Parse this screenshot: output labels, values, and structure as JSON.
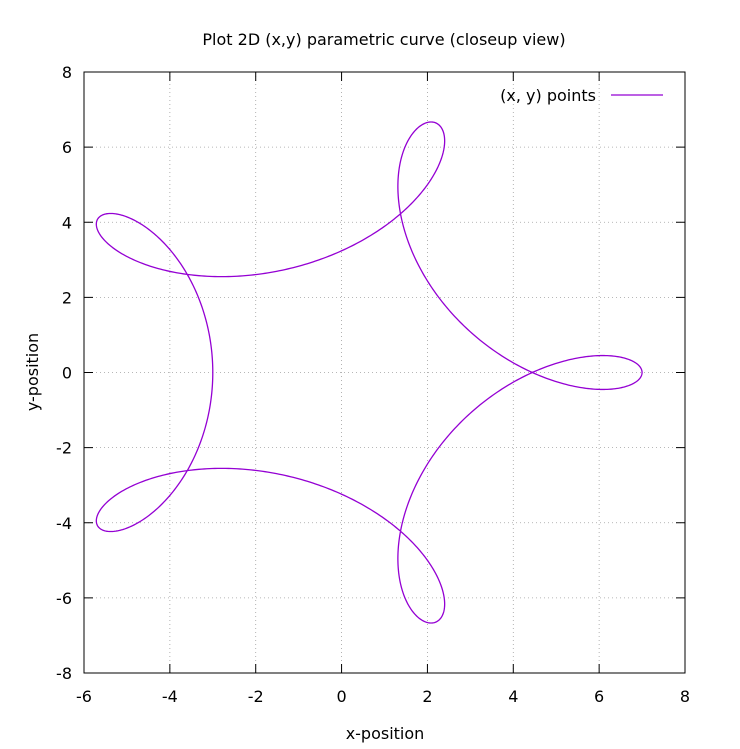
{
  "chart_data": {
    "type": "line",
    "title": "Plot 2D (x,y) parametric curve (closeup view)",
    "xlabel": "x-position",
    "ylabel": "y-position",
    "xlim": [
      -6,
      8
    ],
    "ylim": [
      -8,
      8
    ],
    "x_ticks": [
      -6,
      -4,
      -2,
      0,
      2,
      4,
      6,
      8
    ],
    "y_ticks": [
      -8,
      -6,
      -4,
      -2,
      0,
      2,
      4,
      6,
      8
    ],
    "grid": true,
    "legend_position": "top-right",
    "series": [
      {
        "name": "(x, y) points",
        "color": "#9400d3",
        "equation": {
          "x": "5*cos(t) + 2*cos(4*t)",
          "y": "5*sin(t) - 2*sin(4*t)",
          "t_range": [
            0,
            6.2832
          ]
        }
      }
    ]
  }
}
